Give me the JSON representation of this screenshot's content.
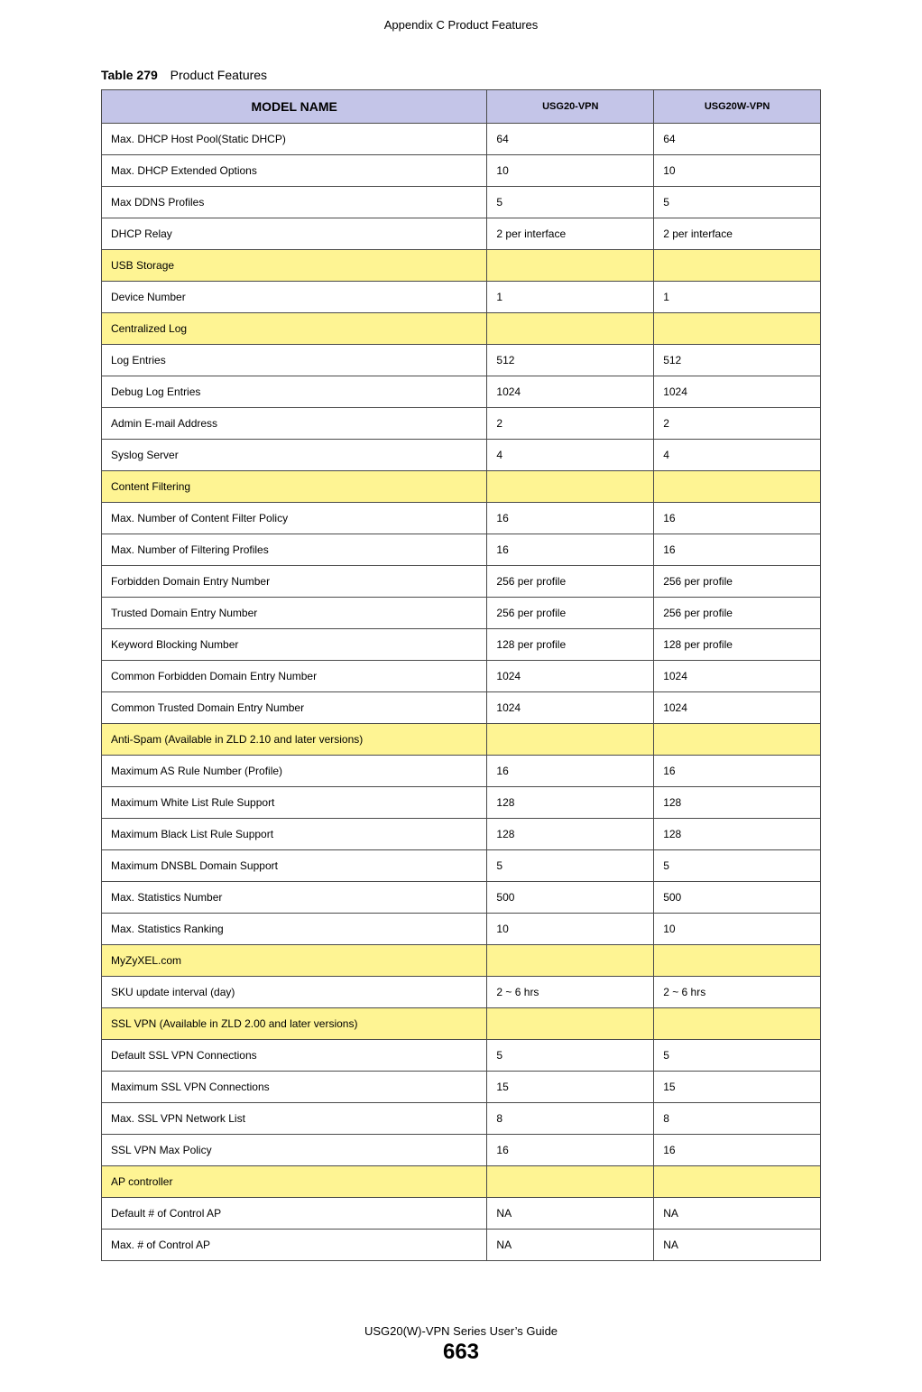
{
  "header": "Appendix C Product Features",
  "caption_label": "Table 279",
  "caption_title": "Product Features",
  "footer_guide": "USG20(W)-VPN Series User’s Guide",
  "footer_page": "663",
  "table": {
    "header_bg": "#c4c5e8",
    "section_bg": "#fef493",
    "border_color": "#4a4a4a",
    "columns": {
      "model_label": "MODEL NAME",
      "col1": "USG20-VPN",
      "col2": "USG20W-VPN"
    },
    "rows": [
      {
        "type": "data",
        "label": "Max. DHCP Host Pool(Static DHCP)",
        "v1": "64",
        "v2": "64"
      },
      {
        "type": "data",
        "label": "Max. DHCP Extended Options",
        "v1": "10",
        "v2": "10"
      },
      {
        "type": "data",
        "label": "Max DDNS Profiles",
        "v1": "5",
        "v2": "5"
      },
      {
        "type": "data",
        "label": "DHCP Relay",
        "v1": "2 per interface",
        "v2": "2 per interface"
      },
      {
        "type": "section",
        "label": "USB Storage",
        "v1": "",
        "v2": ""
      },
      {
        "type": "data",
        "label": "Device Number",
        "v1": "1",
        "v2": "1"
      },
      {
        "type": "section",
        "label": "Centralized Log",
        "v1": "",
        "v2": ""
      },
      {
        "type": "data",
        "label": "Log Entries",
        "v1": "512",
        "v2": "512"
      },
      {
        "type": "data",
        "label": "Debug Log Entries",
        "v1": "1024",
        "v2": "1024"
      },
      {
        "type": "data",
        "label": "Admin E-mail Address",
        "v1": "2",
        "v2": "2"
      },
      {
        "type": "data",
        "label": "Syslog Server",
        "v1": "4",
        "v2": "4"
      },
      {
        "type": "section",
        "label": "Content Filtering",
        "v1": "",
        "v2": ""
      },
      {
        "type": "data",
        "label": "Max. Number of Content Filter Policy",
        "v1": "16",
        "v2": "16"
      },
      {
        "type": "data",
        "label": "Max. Number of Filtering Profiles",
        "v1": "16",
        "v2": "16"
      },
      {
        "type": "data",
        "label": "Forbidden Domain Entry Number",
        "v1": "256 per profile",
        "v2": "256 per profile"
      },
      {
        "type": "data",
        "label": "Trusted Domain Entry Number",
        "v1": "256 per profile",
        "v2": "256 per profile"
      },
      {
        "type": "data",
        "label": "Keyword Blocking Number",
        "v1": "128 per profile",
        "v2": "128 per profile"
      },
      {
        "type": "data",
        "label": "Common Forbidden Domain Entry Number",
        "v1": "1024",
        "v2": "1024"
      },
      {
        "type": "data",
        "label": "Common Trusted Domain Entry Number",
        "v1": "1024",
        "v2": "1024"
      },
      {
        "type": "section",
        "label": "Anti-Spam (Available in ZLD 2.10 and later versions)",
        "v1": "",
        "v2": ""
      },
      {
        "type": "data",
        "label": "Maximum AS Rule Number (Profile)",
        "v1": "16",
        "v2": "16"
      },
      {
        "type": "data",
        "label": "Maximum White List Rule Support",
        "v1": "128",
        "v2": "128"
      },
      {
        "type": "data",
        "label": "Maximum Black List Rule Support",
        "v1": "128",
        "v2": "128"
      },
      {
        "type": "data",
        "label": "Maximum DNSBL Domain Support",
        "v1": "5",
        "v2": "5"
      },
      {
        "type": "data",
        "label": "Max. Statistics Number",
        "v1": "500",
        "v2": "500"
      },
      {
        "type": "data",
        "label": "Max. Statistics Ranking",
        "v1": "10",
        "v2": "10"
      },
      {
        "type": "section",
        "label": "MyZyXEL.com",
        "v1": "",
        "v2": ""
      },
      {
        "type": "data",
        "label": "SKU update interval (day)",
        "v1": "2 ~ 6 hrs",
        "v2": "2 ~ 6 hrs"
      },
      {
        "type": "section",
        "label": "SSL VPN (Available in ZLD 2.00 and later versions)",
        "v1": "",
        "v2": ""
      },
      {
        "type": "data",
        "label": "Default  SSL VPN Connections",
        "v1": "5",
        "v2": "5"
      },
      {
        "type": "data",
        "label": "Maximum SSL VPN Connections",
        "v1": "15",
        "v2": "15"
      },
      {
        "type": "data",
        "label": "Max. SSL VPN Network List",
        "v1": "8",
        "v2": "8"
      },
      {
        "type": "data",
        "label": "SSL VPN Max Policy",
        "v1": "16",
        "v2": "16"
      },
      {
        "type": "section",
        "label": "AP controller",
        "v1": "",
        "v2": ""
      },
      {
        "type": "data",
        "label": "Default # of Control AP",
        "v1": "NA",
        "v2": "NA"
      },
      {
        "type": "data",
        "label": "Max. # of Control AP",
        "v1": "NA",
        "v2": "NA"
      }
    ]
  }
}
